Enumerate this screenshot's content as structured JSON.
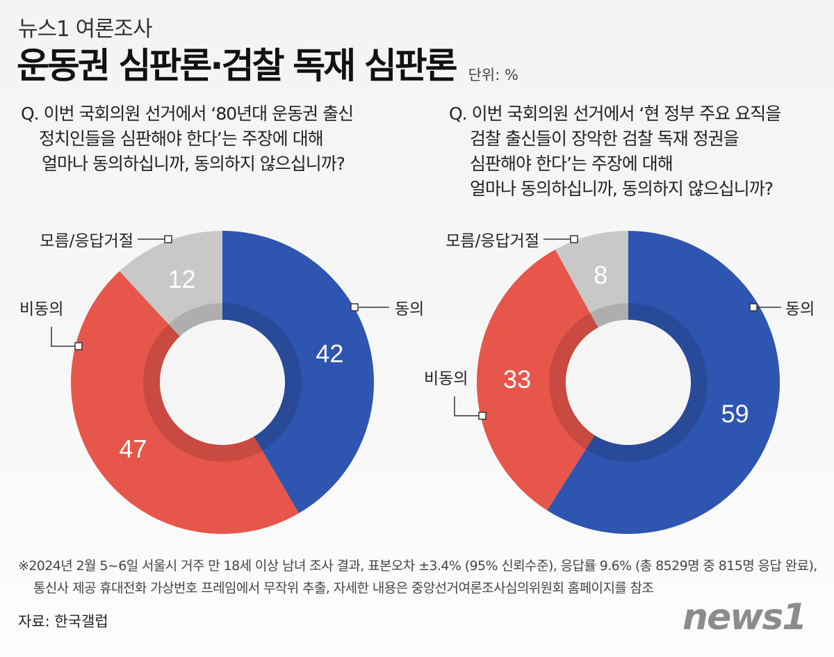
{
  "brand": "뉴스1 여론조사",
  "title": "운동권 심판론·검찰 독재 심판론",
  "unit": "단위: %",
  "colors": {
    "agree": "#2e55b0",
    "disagree": "#e6564a",
    "unknown": "#c8c8c8"
  },
  "questions": {
    "q1": [
      "Q. 이번 국회의원 선거에서 ‘80년대 운동권 출신",
      "정치인들을 심판해야 한다’는 주장에 대해",
      "얼마나 동의하십니까, 동의하지 않으십니까?"
    ],
    "q2": [
      "Q. 이번 국회의원 선거에서 ‘현 정부 주요 요직을",
      "검찰 출신들이 장악한 검찰 독재 정권을",
      "심판해야 한다’는 주장에 대해",
      "얼마나 동의하십니까, 동의하지 않으십니까?"
    ]
  },
  "chart_data": [
    {
      "type": "pie",
      "title": "운동권 심판론",
      "categories": [
        "동의",
        "비동의",
        "모름/응답거절"
      ],
      "values": [
        42,
        47,
        12
      ],
      "labels": {
        "agree": "동의",
        "disagree": "비동의",
        "unknown": "모름/응답거절"
      }
    },
    {
      "type": "pie",
      "title": "검찰 독재 심판론",
      "categories": [
        "동의",
        "비동의",
        "모름/응답거절"
      ],
      "values": [
        59,
        33,
        8
      ],
      "labels": {
        "agree": "동의",
        "disagree": "비동의",
        "unknown": "모름/응답거절"
      }
    }
  ],
  "footnote": [
    "※2024년 2월 5~6일 서울시 거주 만 18세 이상 남녀 조사 결과, 표본오차 ±3.4% (95% 신뢰수준), 응답률 9.6% (총 8529명 중 815명 응답 완료),",
    "통신사 제공 휴대전화 가상번호 프레임에서 무작위 추출, 자세한 내용은 중앙선거여론조사심의위원회 홈페이지를 참조"
  ],
  "source": "자료: 한국갤럽",
  "logo": "news1"
}
